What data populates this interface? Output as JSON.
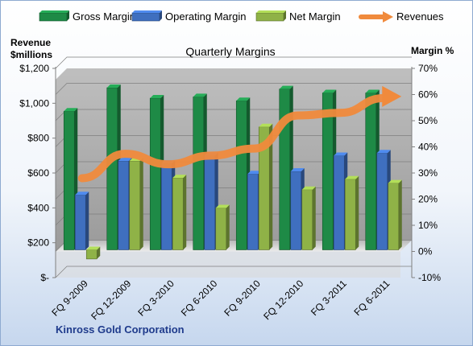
{
  "chart_data": {
    "type": "bar",
    "title": "Quarterly Margins",
    "categories": [
      "FQ 9-2009",
      "FQ 12-2009",
      "FQ 3-2010",
      "FQ 6-2010",
      "FQ 9-2010",
      "FQ 12-2010",
      "FQ 3-2011",
      "FQ 6-2011"
    ],
    "series": [
      {
        "name": "Gross Margin",
        "kind": "bar",
        "axis": "right",
        "color": "#1e8a46",
        "values": [
          53,
          62,
          58,
          58.5,
          57,
          61.5,
          60,
          60
        ]
      },
      {
        "name": "Operating Margin",
        "kind": "bar",
        "axis": "right",
        "color": "#3f6fbf",
        "values": [
          21,
          34,
          33,
          36,
          29,
          30,
          36,
          37
        ]
      },
      {
        "name": "Net Margin",
        "kind": "bar",
        "axis": "right",
        "color": "#8fb247",
        "values": [
          -3.5,
          34,
          27.5,
          16,
          47,
          23,
          27,
          25.5
        ]
      },
      {
        "name": "Revenues",
        "kind": "line",
        "axis": "left",
        "color": "#f08a3c",
        "values": [
          570,
          710,
          650,
          700,
          740,
          930,
          945,
          1030
        ]
      }
    ],
    "left_axis": {
      "label_line1": "Revenue",
      "label_line2": "$millions",
      "ylim": [
        0,
        1200
      ],
      "ticks": [
        0,
        200,
        400,
        600,
        800,
        1000,
        1200
      ],
      "tick_labels": [
        "$-",
        "$200",
        "$400",
        "$600",
        "$800",
        "$1,000",
        "$1,200"
      ]
    },
    "right_axis": {
      "label": "Margin %",
      "ylim": [
        -10,
        70
      ],
      "ticks": [
        -10,
        0,
        10,
        20,
        30,
        40,
        50,
        60,
        70
      ],
      "tick_labels": [
        "-10%",
        "0%",
        "10%",
        "20%",
        "30%",
        "40%",
        "50%",
        "60%",
        "70%"
      ]
    },
    "grid": true,
    "legend_position": "top",
    "plot_background": "#a6a6a6"
  },
  "footer": {
    "company": "Kinross Gold Corporation"
  }
}
